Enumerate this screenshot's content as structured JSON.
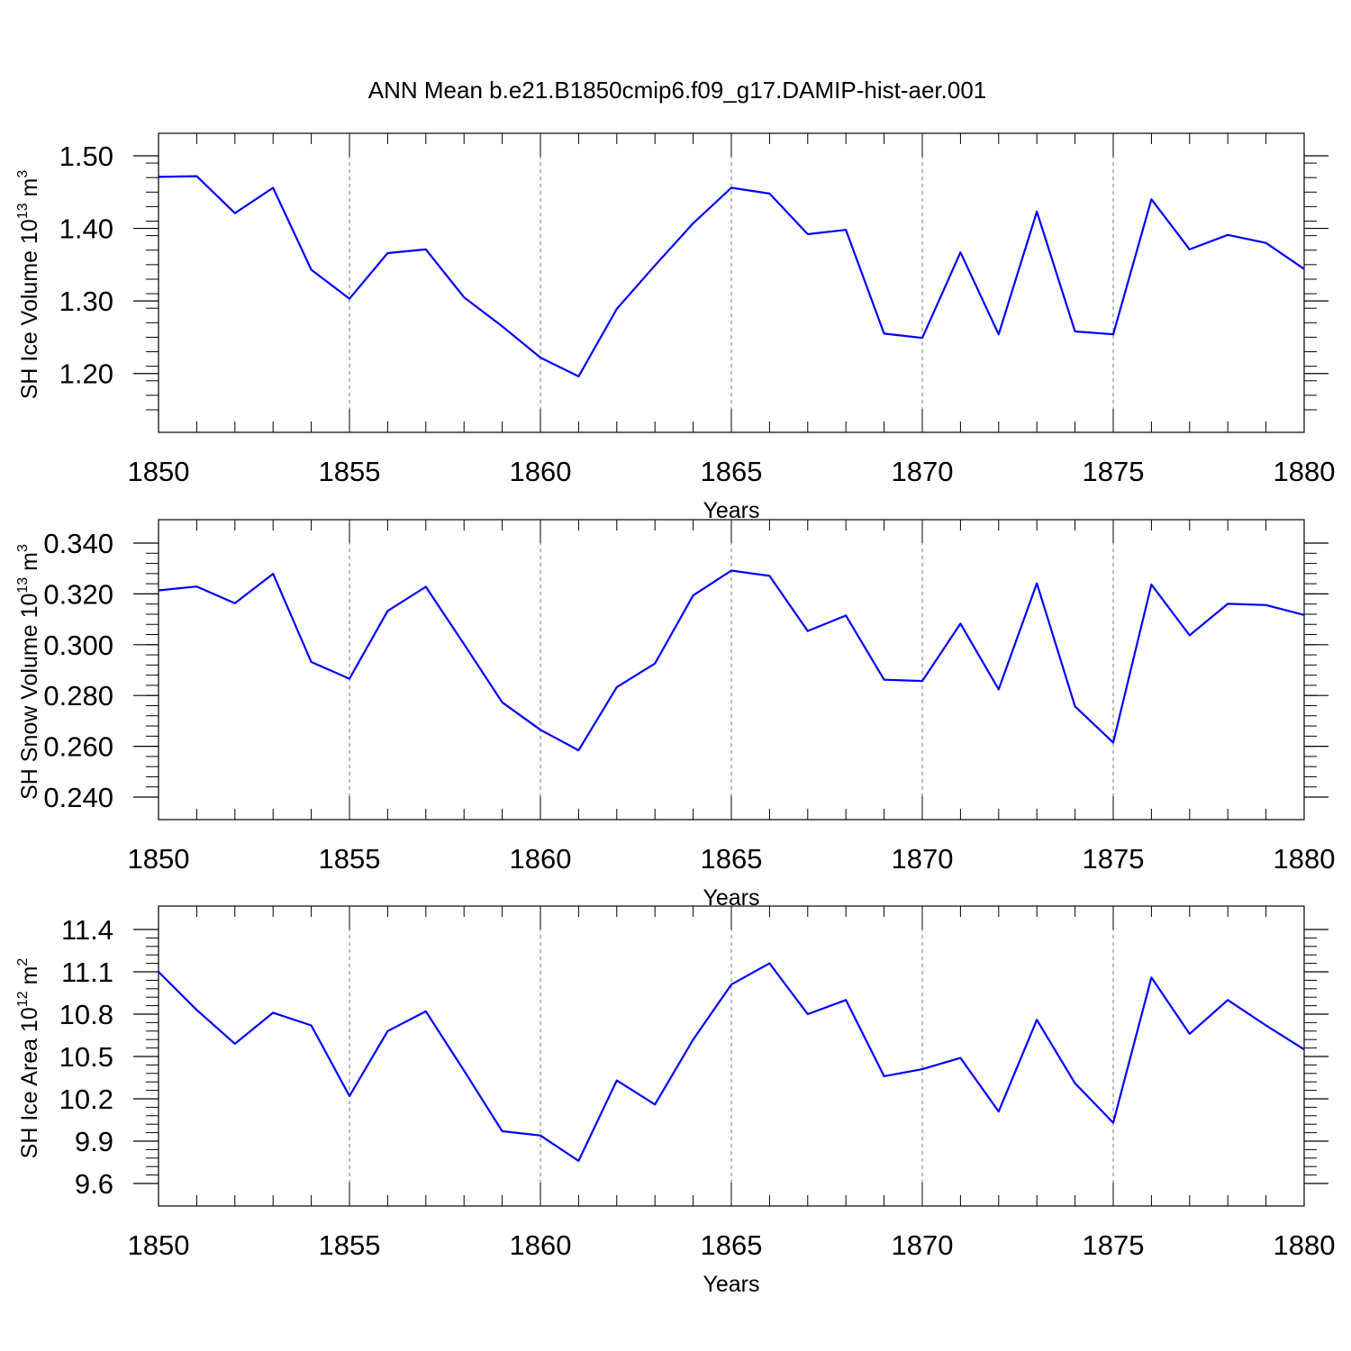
{
  "figure": {
    "title": "ANN Mean b.e21.B1850cmip6.f09_g17.DAMIP-hist-aer.001"
  },
  "chart_data": [
    {
      "type": "line",
      "ylabel_parts": [
        "SH Ice Volume 10",
        "13",
        " m",
        "3"
      ],
      "xlabel": "Years",
      "xlim": [
        1850,
        1880
      ],
      "ylim": [
        1.15,
        1.5
      ],
      "x_ticks": [
        1850,
        1855,
        1860,
        1865,
        1870,
        1875,
        1880
      ],
      "y_ticks": [
        "1.20",
        "1.30",
        "1.40",
        "1.50"
      ],
      "y_tick_values": [
        1.2,
        1.3,
        1.4,
        1.5
      ],
      "grid": "vertical dashed at major x ticks",
      "series_color": "#0000ff",
      "x": [
        1850,
        1851,
        1852,
        1853,
        1854,
        1855,
        1856,
        1857,
        1858,
        1859,
        1860,
        1861,
        1862,
        1863,
        1864,
        1865,
        1866,
        1867,
        1868,
        1869,
        1870,
        1871,
        1872,
        1873,
        1874,
        1875,
        1876,
        1877,
        1878,
        1879,
        1880
      ],
      "values": [
        1.471,
        1.472,
        1.421,
        1.456,
        1.343,
        1.303,
        1.366,
        1.371,
        1.305,
        1.265,
        1.222,
        1.196,
        1.289,
        1.349,
        1.407,
        1.456,
        1.448,
        1.392,
        1.398,
        1.255,
        1.249,
        1.367,
        1.254,
        1.423,
        1.258,
        1.254,
        1.44,
        1.371,
        1.391,
        1.38,
        1.344
      ]
    },
    {
      "type": "line",
      "ylabel_parts": [
        "SH Snow Volume 10",
        "13",
        " m",
        "3"
      ],
      "xlabel": "Years",
      "xlim": [
        1850,
        1880
      ],
      "ylim": [
        0.24,
        0.34
      ],
      "x_ticks": [
        1850,
        1855,
        1860,
        1865,
        1870,
        1875,
        1880
      ],
      "y_ticks": [
        "0.240",
        "0.260",
        "0.280",
        "0.300",
        "0.320",
        "0.340"
      ],
      "y_tick_values": [
        0.24,
        0.26,
        0.28,
        0.3,
        0.32,
        0.34
      ],
      "grid": "vertical dashed at major x ticks",
      "series_color": "#0000ff",
      "x": [
        1850,
        1851,
        1852,
        1853,
        1854,
        1855,
        1856,
        1857,
        1858,
        1859,
        1860,
        1861,
        1862,
        1863,
        1864,
        1865,
        1866,
        1867,
        1868,
        1869,
        1870,
        1871,
        1872,
        1873,
        1874,
        1875,
        1876,
        1877,
        1878,
        1879,
        1880
      ],
      "values": [
        0.3214,
        0.3229,
        0.3163,
        0.3279,
        0.2932,
        0.2866,
        0.3133,
        0.3228,
        0.3002,
        0.2773,
        0.2665,
        0.2584,
        0.2833,
        0.2926,
        0.3194,
        0.3292,
        0.3271,
        0.3054,
        0.3115,
        0.2862,
        0.2857,
        0.3083,
        0.2824,
        0.3242,
        0.2757,
        0.2615,
        0.3237,
        0.3037,
        0.3161,
        0.3156,
        0.3117
      ]
    },
    {
      "type": "line",
      "ylabel_parts": [
        "SH Ice Area 10",
        "12",
        " m",
        "2"
      ],
      "xlabel": "Years",
      "xlim": [
        1850,
        1880
      ],
      "ylim": [
        9.6,
        11.4
      ],
      "x_ticks": [
        1850,
        1855,
        1860,
        1865,
        1870,
        1875,
        1880
      ],
      "y_ticks": [
        "9.6",
        "9.9",
        "10.2",
        "10.5",
        "10.8",
        "11.1",
        "11.4"
      ],
      "y_tick_values": [
        9.6,
        9.9,
        10.2,
        10.5,
        10.8,
        11.1,
        11.4
      ],
      "grid": "vertical dashed at major x ticks",
      "series_color": "#0000ff",
      "x": [
        1850,
        1851,
        1852,
        1853,
        1854,
        1855,
        1856,
        1857,
        1858,
        1859,
        1860,
        1861,
        1862,
        1863,
        1864,
        1865,
        1866,
        1867,
        1868,
        1869,
        1870,
        1871,
        1872,
        1873,
        1874,
        1875,
        1876,
        1877,
        1878,
        1879,
        1880
      ],
      "values": [
        11.1,
        10.83,
        10.59,
        10.81,
        10.72,
        10.22,
        10.68,
        10.82,
        10.4,
        9.97,
        9.94,
        9.76,
        10.33,
        10.16,
        10.62,
        11.01,
        11.16,
        10.8,
        10.9,
        10.36,
        10.41,
        10.49,
        10.11,
        10.76,
        10.31,
        10.03,
        11.06,
        10.66,
        10.9,
        10.72,
        10.55
      ]
    }
  ]
}
